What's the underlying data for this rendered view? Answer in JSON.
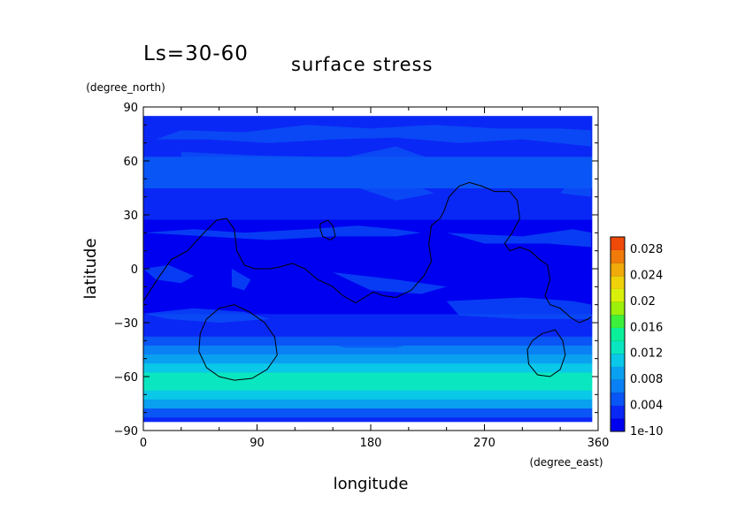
{
  "chart_data": {
    "type": "heatmap",
    "title": "surface stress",
    "period_label": "Ls=30-60",
    "xlabel": "longitude",
    "ylabel": "latitude",
    "x_units": "(degree_east)",
    "y_units": "(degree_north)",
    "xlim": [
      0,
      360
    ],
    "ylim": [
      -90,
      90
    ],
    "x_ticks": [
      "0",
      "90",
      "180",
      "270",
      "360"
    ],
    "y_ticks": [
      "90",
      "60",
      "30",
      "0",
      "−30",
      "−60",
      "−90"
    ],
    "x_tick_values": [
      0,
      90,
      180,
      270,
      360
    ],
    "y_tick_values": [
      90,
      60,
      30,
      0,
      -30,
      -60,
      -90
    ],
    "colorbar": {
      "labels": [
        "0.028",
        "0.024",
        "0.02",
        "0.016",
        "0.012",
        "0.008",
        "0.004",
        "1e-10"
      ],
      "levels": [
        1e-10,
        0.002,
        0.004,
        0.006,
        0.008,
        0.01,
        0.012,
        0.014,
        0.016,
        0.018,
        0.02,
        0.022,
        0.024,
        0.026,
        0.028,
        0.03
      ],
      "colors": [
        "#0000f0",
        "#0a28f5",
        "#0a55f5",
        "#0a80f5",
        "#0aa0f0",
        "#0ac8e8",
        "#0ae6c0",
        "#0af09a",
        "#3cf03c",
        "#9cf00a",
        "#d8f00a",
        "#f0d20a",
        "#f0aa0a",
        "#f07a0a",
        "#f04a0a"
      ]
    },
    "latitude_profile": {
      "lat": [
        -85,
        -80,
        -75,
        -70,
        -65,
        -60,
        -55,
        -50,
        -45,
        -40,
        -35,
        -30,
        -20,
        0,
        20,
        35,
        55,
        70,
        85
      ],
      "band_color_index": [
        1,
        2,
        4,
        5,
        6,
        6,
        5,
        4,
        3,
        2,
        1,
        1,
        0,
        0,
        0,
        1,
        2,
        1,
        1
      ]
    }
  }
}
